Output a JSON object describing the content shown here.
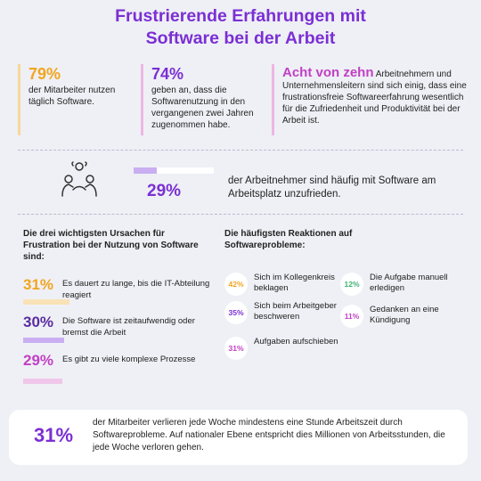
{
  "title": {
    "line1": "Frustrierende Erfahrungen mit",
    "line2": "Software bei der Arbeit"
  },
  "stats": [
    {
      "value": "79%",
      "text": "der Mitarbeiter nutzen täglich Software."
    },
    {
      "value": "74%",
      "text": "geben an, dass die Softwarenutzung in den vergangenen zwei Jahren zugenommen habe."
    },
    {
      "highlight": "Acht von zehn",
      "text": " Arbeitnehmern und Unternehmensleitern sind sich einig, dass eine frustrationsfreie Softwareerfahrung wesentlich für die Zufriedenheit und Produktivität bei der Arbeit ist."
    }
  ],
  "middle": {
    "icon": "people-icon",
    "value": "29%",
    "progress": 0.29,
    "text": "der Arbeitnehmer sind häufig mit Software am Arbeitsplatz unzufrieden."
  },
  "causes": {
    "heading": "Die drei wichtigsten Ursachen für Frustration bei der Nutzung von Software sind:",
    "items": [
      {
        "value": "31%",
        "text": "Es dauert zu lange, bis die IT-Abteilung reagiert",
        "color": "#f2a51f"
      },
      {
        "value": "30%",
        "text": "Die Software ist zeitaufwendig oder bremst die Arbeit",
        "color": "#5a2ca0"
      },
      {
        "value": "29%",
        "text": "Es gibt zu viele komplexe Prozesse",
        "color": "#c23fc5"
      }
    ]
  },
  "reactions": {
    "heading": "Die häufigsten Reaktionen auf Softwareprobleme:",
    "items": [
      {
        "value": "42%",
        "text": "Sich im Kollegenkreis beklagen",
        "color": "#f2a51f"
      },
      {
        "value": "35%",
        "text": "Sich beim Arbeitgeber beschweren",
        "color": "#7b2fd4"
      },
      {
        "value": "31%",
        "text": "Aufgaben aufschieben",
        "color": "#c23fc5"
      },
      {
        "value": "12%",
        "text": "Die Aufgabe manuell erledigen",
        "color": "#3cb371"
      },
      {
        "value": "11%",
        "text": "Gedanken an eine Kündigung",
        "color": "#c23fc5"
      }
    ]
  },
  "bottom": {
    "value": "31%",
    "text": "der Mitarbeiter verlieren jede Woche mindestens eine Stunde Arbeitszeit durch Softwareprobleme. Auf nationaler Ebene entspricht dies Millionen von Arbeitsstunden, die jede Woche verloren gehen."
  },
  "colors": {
    "purple": "#7b2fd4",
    "orange": "#f2a51f",
    "magenta": "#c23fc5",
    "green": "#3cb371",
    "background": "#eef0f5"
  }
}
